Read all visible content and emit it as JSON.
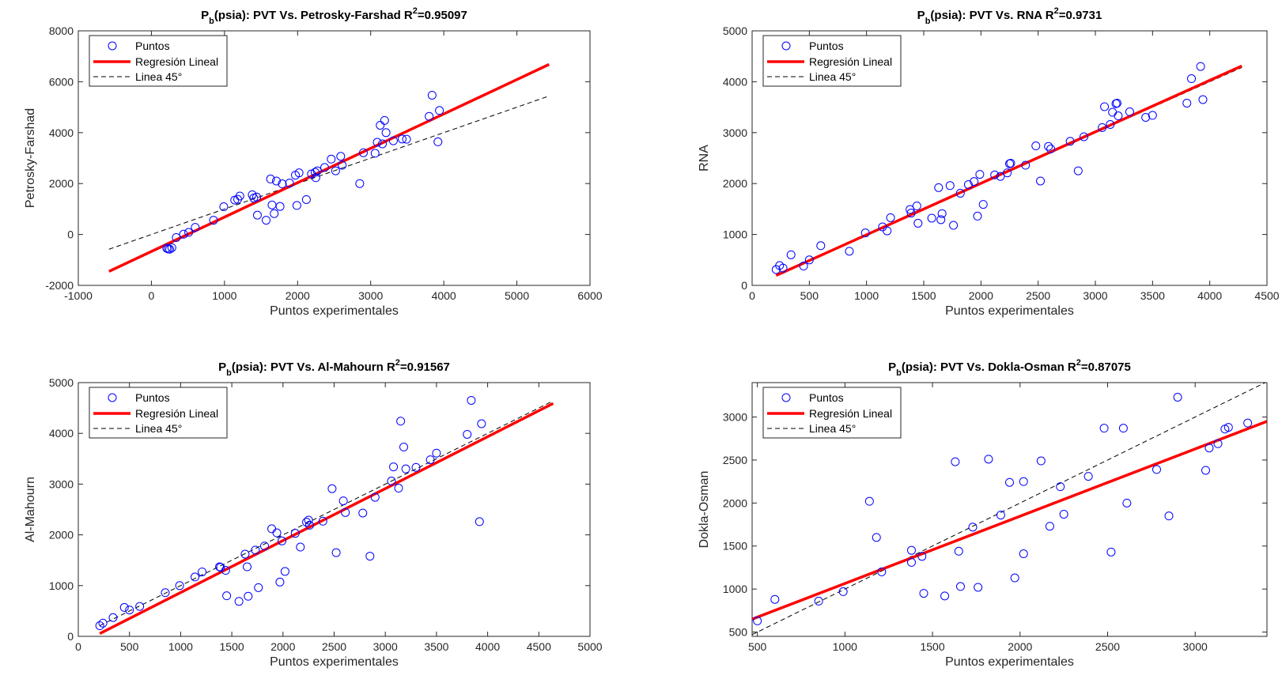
{
  "chart_data": [
    {
      "type": "scatter",
      "title_main": "P",
      "title_sub": "b",
      "title_mid": "(psia): PVT Vs. Petrosky-Farshad R",
      "title_sup": "2",
      "title_end": "=0.95097",
      "xlabel": "Puntos experimentales",
      "ylabel": "Petrosky-Farshad",
      "xlim": [
        -1000,
        6000
      ],
      "ylim": [
        -2000,
        8000
      ],
      "xticks": [
        -1000,
        0,
        1000,
        2000,
        3000,
        4000,
        5000,
        6000
      ],
      "yticks": [
        -2000,
        0,
        2000,
        4000,
        6000,
        8000
      ],
      "legend_position": "top-left",
      "legend": [
        "Puntos",
        "Regresión Lineal",
        "Linea 45°"
      ],
      "colors": {
        "points": "#0000ff",
        "regression": "#ff0000",
        "reference": "#000000"
      },
      "series": [
        {
          "name": "Puntos",
          "kind": "points",
          "x": [
            210,
            230,
            250,
            280,
            340,
            440,
            510,
            600,
            850,
            990,
            1140,
            1180,
            1210,
            1380,
            1400,
            1440,
            1450,
            1570,
            1630,
            1650,
            1680,
            1710,
            1760,
            1790,
            1890,
            1970,
            1990,
            2020,
            2120,
            2190,
            2240,
            2250,
            2270,
            2370,
            2460,
            2520,
            2590,
            2610,
            2850,
            2900,
            3060,
            3090,
            3130,
            3160,
            3190,
            3210,
            3310,
            3430,
            3490,
            3800,
            3840,
            3920,
            3940
          ],
          "y": [
            -540,
            -570,
            -580,
            -520,
            -120,
            10,
            80,
            280,
            560,
            1090,
            1350,
            1380,
            1510,
            1560,
            1430,
            1470,
            760,
            560,
            2180,
            1160,
            820,
            2100,
            1100,
            1990,
            2020,
            2330,
            1140,
            2420,
            1370,
            2380,
            2440,
            2230,
            2500,
            2630,
            2960,
            2500,
            3070,
            2720,
            2000,
            3210,
            3190,
            3620,
            4290,
            3560,
            4480,
            4000,
            3680,
            3750,
            3740,
            4640,
            5470,
            3640,
            4870
          ]
        },
        {
          "name": "Regresión Lineal",
          "kind": "line",
          "x": [
            -580,
            5440
          ],
          "y": [
            -1450,
            6680
          ]
        },
        {
          "name": "Linea 45°",
          "kind": "dashed",
          "x": [
            -580,
            5440
          ],
          "y": [
            -580,
            5440
          ]
        }
      ]
    },
    {
      "type": "scatter",
      "title_main": "P",
      "title_sub": "b",
      "title_mid": "(psia): PVT Vs. RNA R",
      "title_sup": "2",
      "title_end": "=0.9731",
      "xlabel": "Puntos experimentales",
      "ylabel": "RNA",
      "xlim": [
        0,
        4500
      ],
      "ylim": [
        0,
        5000
      ],
      "xticks": [
        0,
        500,
        1000,
        1500,
        2000,
        2500,
        3000,
        3500,
        4000,
        4500
      ],
      "yticks": [
        0,
        1000,
        2000,
        3000,
        4000,
        5000
      ],
      "legend_position": "top-left",
      "legend": [
        "Puntos",
        "Regresión Lineal",
        "Linea 45°"
      ],
      "colors": {
        "points": "#0000ff",
        "regression": "#ff0000",
        "reference": "#000000"
      },
      "series": [
        {
          "name": "Puntos",
          "kind": "points",
          "x": [
            210,
            240,
            270,
            340,
            450,
            500,
            600,
            850,
            990,
            1140,
            1180,
            1210,
            1380,
            1390,
            1440,
            1450,
            1570,
            1630,
            1650,
            1660,
            1730,
            1760,
            1820,
            1890,
            1940,
            1970,
            1990,
            2020,
            2120,
            2170,
            2230,
            2250,
            2260,
            2390,
            2480,
            2520,
            2590,
            2610,
            2780,
            2850,
            2900,
            3060,
            3080,
            3130,
            3150,
            3180,
            3190,
            3200,
            3300,
            3440,
            3500,
            3800,
            3840,
            3920,
            3940
          ],
          "y": [
            310,
            390,
            340,
            600,
            380,
            500,
            780,
            670,
            1030,
            1150,
            1070,
            1330,
            1490,
            1420,
            1560,
            1220,
            1320,
            1920,
            1290,
            1410,
            1960,
            1180,
            1810,
            1980,
            2040,
            1360,
            2180,
            1590,
            2170,
            2140,
            2210,
            2390,
            2400,
            2360,
            2740,
            2050,
            2730,
            2680,
            2830,
            2250,
            2920,
            3100,
            3510,
            3160,
            3400,
            3570,
            3580,
            3330,
            3410,
            3300,
            3340,
            3580,
            4060,
            4300,
            3650
          ]
        },
        {
          "name": "Regresión Lineal",
          "kind": "line",
          "x": [
            210,
            4280
          ],
          "y": [
            195,
            4310
          ]
        },
        {
          "name": "Linea 45°",
          "kind": "dashed",
          "x": [
            210,
            4280
          ],
          "y": [
            210,
            4280
          ]
        }
      ]
    },
    {
      "type": "scatter",
      "title_main": "P",
      "title_sub": "b",
      "title_mid": "(psia): PVT Vs. Al-Mahourn R",
      "title_sup": "2",
      "title_end": "=0.91567",
      "xlabel": "Puntos experimentales",
      "ylabel": "Al-Mahourn",
      "xlim": [
        0,
        5000
      ],
      "ylim": [
        0,
        5000
      ],
      "xticks": [
        0,
        500,
        1000,
        1500,
        2000,
        2500,
        3000,
        3500,
        4000,
        4500,
        5000
      ],
      "yticks": [
        0,
        1000,
        2000,
        3000,
        4000,
        5000
      ],
      "legend_position": "top-left",
      "legend": [
        "Puntos",
        "Regresión Lineal",
        "Linea 45°"
      ],
      "colors": {
        "points": "#0000ff",
        "regression": "#ff0000",
        "reference": "#000000"
      },
      "series": [
        {
          "name": "Puntos",
          "kind": "points",
          "x": [
            210,
            240,
            340,
            450,
            500,
            600,
            850,
            990,
            1140,
            1210,
            1380,
            1390,
            1440,
            1450,
            1570,
            1630,
            1650,
            1660,
            1730,
            1760,
            1820,
            1890,
            1940,
            1970,
            1990,
            2020,
            2120,
            2170,
            2230,
            2250,
            2260,
            2390,
            2480,
            2520,
            2590,
            2610,
            2780,
            2850,
            2900,
            3060,
            3080,
            3130,
            3150,
            3180,
            3200,
            3300,
            3440,
            3500,
            3800,
            3840,
            3920,
            3940
          ],
          "y": [
            210,
            260,
            370,
            570,
            520,
            590,
            860,
            1000,
            1170,
            1270,
            1370,
            1360,
            1300,
            800,
            690,
            1620,
            1370,
            790,
            1700,
            960,
            1780,
            2120,
            2040,
            1070,
            1880,
            1280,
            2030,
            1760,
            2250,
            2290,
            2190,
            2270,
            2910,
            1650,
            2670,
            2440,
            2430,
            1580,
            2740,
            3060,
            3340,
            2920,
            4240,
            3730,
            3300,
            3330,
            3480,
            3610,
            3980,
            4650,
            2260,
            4190
          ]
        },
        {
          "name": "Regresión Lineal",
          "kind": "line",
          "x": [
            210,
            4640
          ],
          "y": [
            55,
            4590
          ]
        },
        {
          "name": "Linea 45°",
          "kind": "dashed",
          "x": [
            210,
            4640
          ],
          "y": [
            210,
            4640
          ]
        }
      ]
    },
    {
      "type": "scatter",
      "title_main": "P",
      "title_sub": "b",
      "title_mid": "(psia): PVT Vs. Dokla-Osman R",
      "title_sup": "2",
      "title_end": "=0.87075",
      "xlabel": "Puntos experimentales",
      "ylabel": "Dokla-Osman",
      "xlim": [
        470,
        3410
      ],
      "ylim": [
        450,
        3400
      ],
      "xticks": [
        500,
        1000,
        1500,
        2000,
        2500,
        3000
      ],
      "yticks": [
        500,
        1000,
        1500,
        2000,
        2500,
        3000
      ],
      "legend_position": "top-left",
      "legend": [
        "Puntos",
        "Regresión Lineal",
        "Linea 45°"
      ],
      "colors": {
        "points": "#0000ff",
        "regression": "#ff0000",
        "reference": "#000000"
      },
      "series": [
        {
          "name": "Puntos",
          "kind": "points",
          "x": [
            500,
            600,
            850,
            990,
            1140,
            1180,
            1210,
            1380,
            1380,
            1440,
            1450,
            1570,
            1630,
            1650,
            1660,
            1730,
            1760,
            1820,
            1890,
            1940,
            1970,
            2020,
            2020,
            2120,
            2170,
            2230,
            2250,
            2390,
            2480,
            2520,
            2590,
            2610,
            2780,
            2850,
            2900,
            3060,
            3080,
            3130,
            3170,
            3190,
            3300
          ],
          "y": [
            630,
            880,
            860,
            970,
            2020,
            1600,
            1200,
            1310,
            1450,
            1380,
            950,
            920,
            2480,
            1440,
            1030,
            1720,
            1020,
            2510,
            1860,
            2240,
            1130,
            2250,
            1410,
            2490,
            1730,
            2190,
            1870,
            2310,
            2870,
            1430,
            2870,
            2000,
            2390,
            1850,
            3230,
            2380,
            2640,
            2690,
            2860,
            2880,
            2930
          ]
        },
        {
          "name": "Regresión Lineal",
          "kind": "line",
          "x": [
            470,
            3410
          ],
          "y": [
            650,
            2950
          ]
        },
        {
          "name": "Linea 45°",
          "kind": "dashed",
          "x": [
            470,
            3410
          ],
          "y": [
            470,
            3410
          ]
        }
      ]
    }
  ]
}
